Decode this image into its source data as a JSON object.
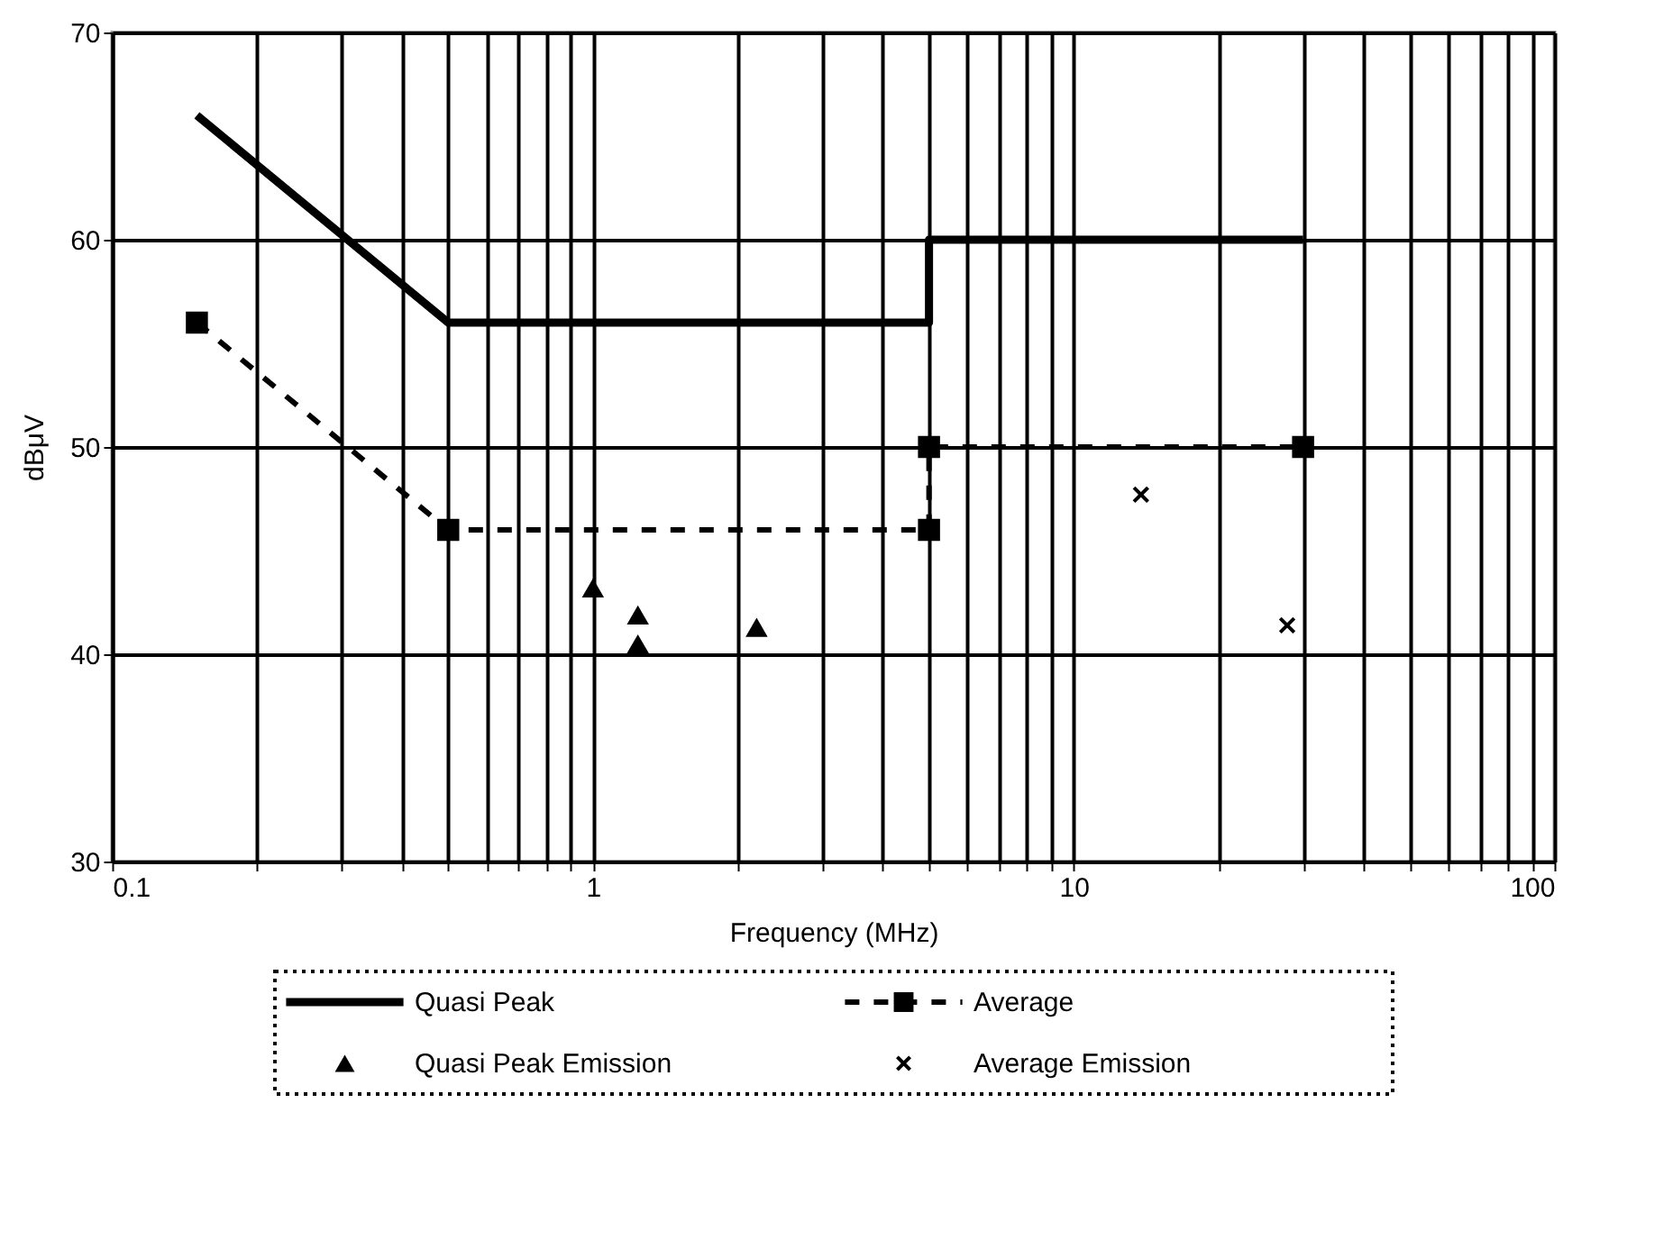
{
  "chart_data": {
    "type": "line",
    "xlabel": "Frequency (MHz)",
    "ylabel": "dBμV",
    "log": "x",
    "grid": true,
    "legend": "bottom",
    "xlim": [
      0.1,
      100
    ],
    "ylim": [
      30,
      70
    ],
    "yticks": [
      30,
      40,
      50,
      60,
      70
    ],
    "xticks": [
      0.1,
      {
        "value": 0.2,
        "label": null
      },
      {
        "value": 0.3,
        "label": null
      },
      {
        "value": 0.4,
        "label": null
      },
      {
        "value": 0.5,
        "label": null
      },
      {
        "value": 0.6,
        "label": null
      },
      {
        "value": 0.7,
        "label": null
      },
      {
        "value": 0.8,
        "label": null
      },
      {
        "value": 0.9,
        "label": null
      },
      1,
      {
        "value": 2,
        "label": null
      },
      {
        "value": 3,
        "label": null
      },
      {
        "value": 4,
        "label": null
      },
      {
        "value": 5,
        "label": null
      },
      {
        "value": 6,
        "label": null
      },
      {
        "value": 7,
        "label": null
      },
      {
        "value": 8,
        "label": null
      },
      {
        "value": 9,
        "label": null
      },
      10,
      {
        "value": 20,
        "label": null
      },
      {
        "value": 30,
        "label": null
      },
      {
        "value": 40,
        "label": null
      },
      {
        "value": 50,
        "label": null
      },
      {
        "value": 60,
        "label": null
      },
      {
        "value": 70,
        "label": null
      },
      {
        "value": 80,
        "label": null
      },
      {
        "value": 90,
        "label": null
      },
      100
    ],
    "series": [
      {
        "name": "Quasi Peak",
        "color": "#000000",
        "line_style": "solid",
        "marker": "none",
        "x": [
          0.15,
          0.5,
          5,
          5,
          30
        ],
        "values": [
          66,
          56,
          56,
          60,
          60
        ]
      },
      {
        "name": "Average",
        "color": "#000000",
        "line_style": "dashed",
        "marker": "square",
        "x": [
          0.15,
          0.5,
          5,
          5,
          30
        ],
        "values": [
          56,
          46,
          46,
          50,
          50
        ]
      },
      {
        "name": "Quasi Peak Emission",
        "type": "scatter",
        "color": "#000000",
        "marker": "triangle",
        "x": [
          1.0,
          1.24,
          1.24,
          2.19
        ],
        "values": [
          43.2,
          41.9,
          40.5,
          41.3
        ]
      },
      {
        "name": "Average Emission",
        "type": "scatter",
        "color": "#000000",
        "marker": "cross",
        "x": [
          13.8,
          27.8
        ],
        "values": [
          47.7,
          41.4
        ]
      }
    ]
  }
}
